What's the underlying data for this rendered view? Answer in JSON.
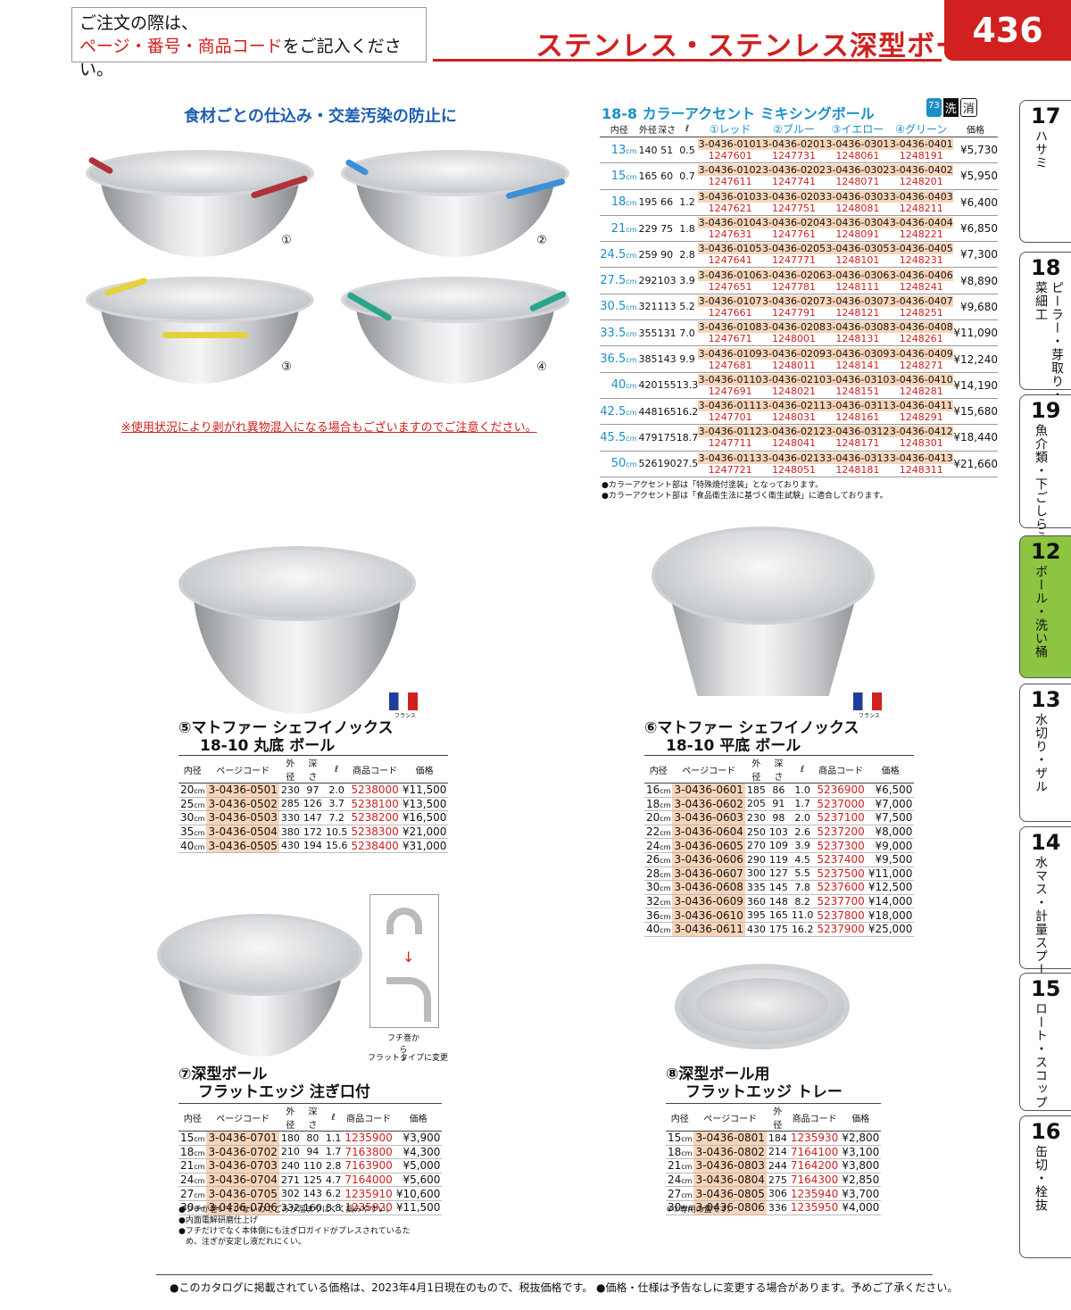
{
  "header": {
    "notice_line1": "ご注文の際は、",
    "notice_line2_red": "ページ・番号・商品コード",
    "notice_line2_tail": "をご記入ください。",
    "title": "ステンレス・ステンレス深型ボール",
    "page_number": "436"
  },
  "side_tabs": [
    {
      "num": "17",
      "label": "ハサミ"
    },
    {
      "num": "18",
      "label": "ピーラー・芽取り・野菜細工"
    },
    {
      "num": "19",
      "label": "魚介類・下ごしらえ"
    },
    {
      "num": "12",
      "label": "ボール・洗い桶",
      "active": true
    },
    {
      "num": "13",
      "label": "水切り・ザル"
    },
    {
      "num": "14",
      "label": "水マス・計量スプーン"
    },
    {
      "num": "15",
      "label": "ロート・スコップ"
    },
    {
      "num": "16",
      "label": "缶切・栓抜"
    }
  ],
  "section1": {
    "subtitle": "食材ごとの仕込み・交差汚染の防止に",
    "warning": "※使用状況により剥がれ異物混入になる場合もございますのでご注意ください。",
    "labels": [
      "①",
      "②",
      "③",
      "④"
    ],
    "accent_colors": [
      "#b0323c",
      "#3d8fd6",
      "#e3d23a",
      "#2aa58a"
    ],
    "product_title": "18-8 カラーアクセント ミキシングボール",
    "badges": [
      "73",
      "洗",
      "消"
    ],
    "headers": [
      "内径",
      "外径",
      "深さ",
      "ℓ",
      "①レッド",
      "②ブルー",
      "③イエロー",
      "④グリーン",
      "価格"
    ],
    "rows": [
      {
        "size": "13",
        "unit": "cm",
        "outer": "140",
        "depth": "51",
        "l": "0.5",
        "codes": [
          [
            "3-0436-0101",
            "1247601"
          ],
          [
            "3-0436-0201",
            "1247731"
          ],
          [
            "3-0436-0301",
            "1248061"
          ],
          [
            "3-0436-0401",
            "1248191"
          ]
        ],
        "price": "¥5,730"
      },
      {
        "size": "15",
        "unit": "cm",
        "outer": "165",
        "depth": "60",
        "l": "0.7",
        "codes": [
          [
            "3-0436-0102",
            "1247611"
          ],
          [
            "3-0436-0202",
            "1247741"
          ],
          [
            "3-0436-0302",
            "1248071"
          ],
          [
            "3-0436-0402",
            "1248201"
          ]
        ],
        "price": "¥5,950"
      },
      {
        "size": "18",
        "unit": "cm",
        "outer": "195",
        "depth": "66",
        "l": "1.2",
        "codes": [
          [
            "3-0436-0103",
            "1247621"
          ],
          [
            "3-0436-0203",
            "1247751"
          ],
          [
            "3-0436-0303",
            "1248081"
          ],
          [
            "3-0436-0403",
            "1248211"
          ]
        ],
        "price": "¥6,400"
      },
      {
        "size": "21",
        "unit": "cm",
        "outer": "229",
        "depth": "75",
        "l": "1.8",
        "codes": [
          [
            "3-0436-0104",
            "1247631"
          ],
          [
            "3-0436-0204",
            "1247761"
          ],
          [
            "3-0436-0304",
            "1248091"
          ],
          [
            "3-0436-0404",
            "1248221"
          ]
        ],
        "price": "¥6,850"
      },
      {
        "size": "24.5",
        "unit": "cm",
        "outer": "259",
        "depth": "90",
        "l": "2.8",
        "codes": [
          [
            "3-0436-0105",
            "1247641"
          ],
          [
            "3-0436-0205",
            "1247771"
          ],
          [
            "3-0436-0305",
            "1248101"
          ],
          [
            "3-0436-0405",
            "1248231"
          ]
        ],
        "price": "¥7,300"
      },
      {
        "size": "27.5",
        "unit": "cm",
        "outer": "292",
        "depth": "103",
        "l": "3.9",
        "codes": [
          [
            "3-0436-0106",
            "1247651"
          ],
          [
            "3-0436-0206",
            "1247781"
          ],
          [
            "3-0436-0306",
            "1248111"
          ],
          [
            "3-0436-0406",
            "1248241"
          ]
        ],
        "price": "¥8,890"
      },
      {
        "size": "30.5",
        "unit": "cm",
        "outer": "321",
        "depth": "113",
        "l": "5.2",
        "codes": [
          [
            "3-0436-0107",
            "1247661"
          ],
          [
            "3-0436-0207",
            "1247791"
          ],
          [
            "3-0436-0307",
            "1248121"
          ],
          [
            "3-0436-0407",
            "1248251"
          ]
        ],
        "price": "¥9,680"
      },
      {
        "size": "33.5",
        "unit": "cm",
        "outer": "355",
        "depth": "131",
        "l": "7.0",
        "codes": [
          [
            "3-0436-0108",
            "1247671"
          ],
          [
            "3-0436-0208",
            "1248001"
          ],
          [
            "3-0436-0308",
            "1248131"
          ],
          [
            "3-0436-0408",
            "1248261"
          ]
        ],
        "price": "¥11,090"
      },
      {
        "size": "36.5",
        "unit": "cm",
        "outer": "385",
        "depth": "143",
        "l": "9.9",
        "codes": [
          [
            "3-0436-0109",
            "1247681"
          ],
          [
            "3-0436-0209",
            "1248011"
          ],
          [
            "3-0436-0309",
            "1248141"
          ],
          [
            "3-0436-0409",
            "1248271"
          ]
        ],
        "price": "¥12,240"
      },
      {
        "size": "40",
        "unit": "cm",
        "outer": "420",
        "depth": "155",
        "l": "13.3",
        "codes": [
          [
            "3-0436-0110",
            "1247691"
          ],
          [
            "3-0436-0210",
            "1248021"
          ],
          [
            "3-0436-0310",
            "1248151"
          ],
          [
            "3-0436-0410",
            "1248281"
          ]
        ],
        "price": "¥14,190"
      },
      {
        "size": "42.5",
        "unit": "cm",
        "outer": "448",
        "depth": "165",
        "l": "16.2",
        "codes": [
          [
            "3-0436-0111",
            "1247701"
          ],
          [
            "3-0436-0211",
            "1248031"
          ],
          [
            "3-0436-0311",
            "1248161"
          ],
          [
            "3-0436-0411",
            "1248291"
          ]
        ],
        "price": "¥15,680"
      },
      {
        "size": "45.5",
        "unit": "cm",
        "outer": "479",
        "depth": "175",
        "l": "18.7",
        "codes": [
          [
            "3-0436-0112",
            "1247711"
          ],
          [
            "3-0436-0212",
            "1248041"
          ],
          [
            "3-0436-0312",
            "1248171"
          ],
          [
            "3-0436-0412",
            "1248301"
          ]
        ],
        "price": "¥18,440"
      },
      {
        "size": "50",
        "unit": "cm",
        "outer": "526",
        "depth": "190",
        "l": "27.5",
        "codes": [
          [
            "3-0436-0113",
            "1247721"
          ],
          [
            "3-0436-0213",
            "1248051"
          ],
          [
            "3-0436-0313",
            "1248181"
          ],
          [
            "3-0436-0413",
            "1248311"
          ]
        ],
        "price": "¥21,660"
      }
    ],
    "notes": [
      "●カラーアクセント部は「特殊焼付塗装」となっております。",
      "●カラーアクセント部は「食品衛生法に基づく衛生試験」に適合しております。"
    ]
  },
  "flag_text": "フランス",
  "product5": {
    "num": "⑤",
    "title1": "マトファー シェフイノックス",
    "title2": "18-10 丸底 ボール",
    "headers": [
      "内径",
      "ページコード",
      "外径",
      "深さ",
      "ℓ",
      "商品コード",
      "価格"
    ],
    "rows": [
      [
        "20",
        "3-0436-0501",
        "230",
        "97",
        "2.0",
        "5238000",
        "¥11,500"
      ],
      [
        "25",
        "3-0436-0502",
        "285",
        "126",
        "3.7",
        "5238100",
        "¥13,500"
      ],
      [
        "30",
        "3-0436-0503",
        "330",
        "147",
        "7.2",
        "5238200",
        "¥16,500"
      ],
      [
        "35",
        "3-0436-0504",
        "380",
        "172",
        "10.5",
        "5238300",
        "¥21,000"
      ],
      [
        "40",
        "3-0436-0505",
        "430",
        "194",
        "15.6",
        "5238400",
        "¥31,000"
      ]
    ]
  },
  "product6": {
    "num": "⑥",
    "title1": "マトファー シェフイノックス",
    "title2": "18-10 平底 ボール",
    "headers": [
      "内径",
      "ページコード",
      "外径",
      "深さ",
      "ℓ",
      "商品コード",
      "価格"
    ],
    "rows": [
      [
        "16",
        "3-0436-0601",
        "185",
        "86",
        "1.0",
        "5236900",
        "¥6,500"
      ],
      [
        "18",
        "3-0436-0602",
        "205",
        "91",
        "1.7",
        "5237000",
        "¥7,000"
      ],
      [
        "20",
        "3-0436-0603",
        "230",
        "98",
        "2.0",
        "5237100",
        "¥7,500"
      ],
      [
        "22",
        "3-0436-0604",
        "250",
        "103",
        "2.6",
        "5237200",
        "¥8,000"
      ],
      [
        "24",
        "3-0436-0605",
        "270",
        "109",
        "3.9",
        "5237300",
        "¥9,000"
      ],
      [
        "26",
        "3-0436-0606",
        "290",
        "119",
        "4.5",
        "5237400",
        "¥9,500"
      ],
      [
        "28",
        "3-0436-0607",
        "300",
        "127",
        "5.5",
        "5237500",
        "¥11,000"
      ],
      [
        "30",
        "3-0436-0608",
        "335",
        "145",
        "7.8",
        "5237600",
        "¥12,500"
      ],
      [
        "32",
        "3-0436-0609",
        "360",
        "148",
        "8.2",
        "5237700",
        "¥14,000"
      ],
      [
        "36",
        "3-0436-0610",
        "395",
        "165",
        "11.0",
        "5237800",
        "¥18,000"
      ],
      [
        "40",
        "3-0436-0611",
        "430",
        "175",
        "16.2",
        "5237900",
        "¥25,000"
      ]
    ]
  },
  "product7": {
    "num": "⑦",
    "title1": "深型ボール",
    "title2": "フラットエッジ 注ぎ口付",
    "diagram_caption1": "フチ巻から",
    "diagram_arrow": "↓",
    "diagram_caption2": "フラットタイプに変更",
    "headers": [
      "内径",
      "ページコード",
      "外径",
      "深さ",
      "ℓ",
      "商品コード",
      "価格"
    ],
    "rows": [
      [
        "15",
        "3-0436-0701",
        "180",
        "80",
        "1.1",
        "1235900",
        "¥3,900"
      ],
      [
        "18",
        "3-0436-0702",
        "210",
        "94",
        "1.7",
        "7163800",
        "¥4,300"
      ],
      [
        "21",
        "3-0436-0703",
        "240",
        "110",
        "2.8",
        "7163900",
        "¥5,000"
      ],
      [
        "24",
        "3-0436-0704",
        "271",
        "125",
        "4.7",
        "7164000",
        "¥5,600"
      ],
      [
        "27",
        "3-0436-0705",
        "302",
        "143",
        "6.2",
        "1235910",
        "¥10,600"
      ],
      [
        "30",
        "3-0436-0706",
        "332",
        "160",
        "8.8",
        "1235920",
        "¥11,500"
      ]
    ],
    "notes": [
      "●フチが巻いていないのでごみが溜まりにくく掴みやすい。",
      "●内面電解研磨仕上げ",
      "●フチだけでなく本体側にも注ぎ口ガイドがプレスされているた",
      "め、注ぎが安定し液だれにくい。"
    ]
  },
  "product8": {
    "num": "⑧",
    "title1": "深型ボール用",
    "title2": "フラットエッジ トレー",
    "headers": [
      "内径",
      "ページコード",
      "外径",
      "商品コード",
      "価格"
    ],
    "rows": [
      [
        "15",
        "3-0436-0801",
        "184",
        "1235930",
        "¥2,800"
      ],
      [
        "18",
        "3-0436-0802",
        "214",
        "7164100",
        "¥3,100"
      ],
      [
        "21",
        "3-0436-0803",
        "244",
        "7164200",
        "¥3,800"
      ],
      [
        "24",
        "3-0436-0804",
        "275",
        "7164300",
        "¥2,850"
      ],
      [
        "27",
        "3-0436-0805",
        "306",
        "1235940",
        "¥3,700"
      ],
      [
        "30",
        "3-0436-0806",
        "336",
        "1235950",
        "¥4,000"
      ]
    ],
    "notes": [
      "※⑦専用の蓋です。"
    ]
  },
  "unit": "cm",
  "footer": "●このカタログに掲載されている価格は、2023年4月1日現在のもので、税抜価格です。 ●価格・仕様は予告なしに変更する場合があります。予めご了承ください。"
}
